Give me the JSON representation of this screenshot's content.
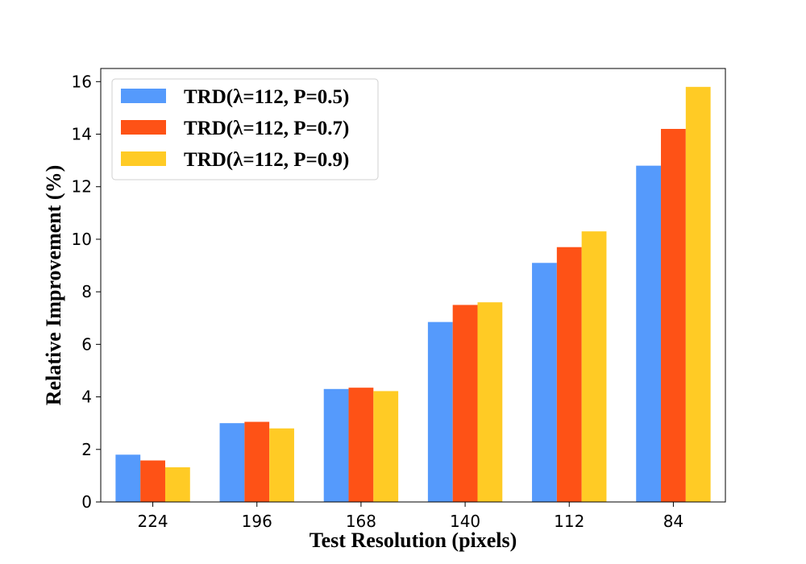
{
  "chart_data": {
    "type": "bar",
    "title": "",
    "xlabel": "Test Resolution (pixels)",
    "ylabel": "Relative Improvement (%)",
    "categories": [
      "224",
      "196",
      "168",
      "140",
      "112",
      "84"
    ],
    "ylim": [
      0,
      16.5
    ],
    "yticks": [
      "0",
      "2",
      "4",
      "6",
      "8",
      "10",
      "12",
      "14",
      "16"
    ],
    "grid": false,
    "legend_position": "top-left",
    "series": [
      {
        "name": "TRD(λ=112, P=0.5)",
        "color": "#559afc",
        "values": [
          1.8,
          3.0,
          4.3,
          6.85,
          9.1,
          12.8
        ]
      },
      {
        "name": "TRD(λ=112, P=0.7)",
        "color": "#fe5216",
        "values": [
          1.58,
          3.05,
          4.35,
          7.5,
          9.7,
          14.2
        ]
      },
      {
        "name": "TRD(λ=112, P=0.9)",
        "color": "#ffcb25",
        "values": [
          1.32,
          2.8,
          4.22,
          7.6,
          10.3,
          15.8
        ]
      }
    ]
  }
}
